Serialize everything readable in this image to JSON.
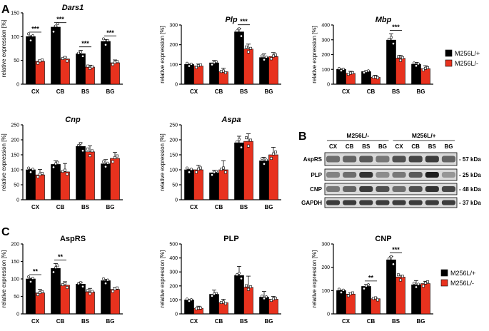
{
  "panels": {
    "A": "A",
    "B": "B",
    "C": "C"
  },
  "colors": {
    "wt": "#000000",
    "mut": "#e8321e"
  },
  "legend_A": [
    {
      "label": "M256L/+",
      "color": "#000000"
    },
    {
      "label": "M256L/-",
      "color": "#e8321e"
    }
  ],
  "legend_C": [
    {
      "label": "M256L/+",
      "color": "#000000"
    },
    {
      "label": "M256L/-",
      "color": "#e8321e"
    }
  ],
  "blot": {
    "groups": [
      "M256L/-",
      "M256L/+"
    ],
    "lanes": [
      "CX",
      "CB",
      "BS",
      "BG",
      "CX",
      "CB",
      "BS",
      "BG"
    ],
    "rows": [
      {
        "label": "AspRS",
        "size": "- 57 kDa",
        "intensity": [
          0.55,
          0.6,
          0.65,
          0.5,
          0.7,
          0.75,
          0.8,
          0.6
        ]
      },
      {
        "label": "PLP",
        "size": "- 25 kDa",
        "intensity": [
          0.45,
          0.55,
          0.85,
          0.4,
          0.5,
          0.65,
          0.95,
          0.35
        ]
      },
      {
        "label": "CNP",
        "size": "- 48 kDa",
        "intensity": [
          0.5,
          0.6,
          0.8,
          0.7,
          0.55,
          0.7,
          0.85,
          0.75
        ]
      },
      {
        "label": "GAPDH",
        "size": "- 37 kDa",
        "intensity": [
          0.8,
          0.8,
          0.8,
          0.8,
          0.8,
          0.8,
          0.8,
          0.8
        ]
      }
    ]
  },
  "chart_data": [
    {
      "id": "dars1",
      "type": "bar",
      "title": "Dars1",
      "italic": true,
      "ylabel": "relative expression [%]",
      "categories": [
        "CX",
        "CB",
        "BS",
        "BG"
      ],
      "ylim": [
        0,
        150
      ],
      "yticks": [
        0,
        50,
        100,
        150
      ],
      "series": [
        {
          "name": "M256L/+",
          "values": [
            100,
            120,
            64,
            90
          ],
          "err": [
            2,
            2,
            7,
            4
          ]
        },
        {
          "name": "M256L/-",
          "values": [
            48,
            53,
            36,
            45
          ],
          "err": [
            3,
            4,
            4,
            6
          ]
        }
      ],
      "significance": [
        "***",
        "***",
        "***",
        "***"
      ]
    },
    {
      "id": "plp_mrna",
      "type": "bar",
      "title": "Plp",
      "italic": true,
      "ylabel": "relative expression [%]",
      "categories": [
        "CX",
        "CB",
        "BS",
        "BG"
      ],
      "ylim": [
        0,
        300
      ],
      "yticks": [
        0,
        100,
        200,
        300
      ],
      "series": [
        {
          "name": "M256L/+",
          "values": [
            100,
            108,
            265,
            135
          ],
          "err": [
            2,
            12,
            18,
            18
          ]
        },
        {
          "name": "M256L/-",
          "values": [
            92,
            63,
            178,
            140
          ],
          "err": [
            10,
            18,
            25,
            20
          ]
        }
      ],
      "significance": [
        "",
        "",
        "***",
        ""
      ]
    },
    {
      "id": "mbp",
      "type": "bar",
      "title": "Mbp",
      "italic": true,
      "ylabel": "relative expression [%]",
      "categories": [
        "CX",
        "CB",
        "BS",
        "BG"
      ],
      "ylim": [
        0,
        400
      ],
      "yticks": [
        0,
        100,
        200,
        300,
        400
      ],
      "series": [
        {
          "name": "M256L/+",
          "values": [
            100,
            85,
            298,
            135
          ],
          "err": [
            3,
            6,
            42,
            12
          ]
        },
        {
          "name": "M256L/-",
          "values": [
            73,
            46,
            175,
            105
          ],
          "err": [
            14,
            14,
            20,
            20
          ]
        }
      ],
      "significance": [
        "",
        "",
        "***",
        ""
      ]
    },
    {
      "id": "cnp_mrna",
      "type": "bar",
      "title": "Cnp",
      "italic": true,
      "ylabel": "relative expression [%]",
      "categories": [
        "CX",
        "CB",
        "BS",
        "BG"
      ],
      "ylim": [
        0,
        250
      ],
      "yticks": [
        0,
        50,
        100,
        150,
        200,
        250
      ],
      "series": [
        {
          "name": "M256L/+",
          "values": [
            100,
            118,
            178,
            120
          ],
          "err": [
            2,
            12,
            12,
            14
          ]
        },
        {
          "name": "M256L/-",
          "values": [
            83,
            93,
            160,
            138
          ],
          "err": [
            18,
            28,
            20,
            20
          ]
        }
      ],
      "significance": [
        "",
        "",
        "",
        ""
      ]
    },
    {
      "id": "aspa",
      "type": "bar",
      "title": "Aspa",
      "italic": true,
      "ylabel": "relative expression [%]",
      "categories": [
        "CX",
        "CB",
        "BS",
        "BG"
      ],
      "ylim": [
        0,
        250
      ],
      "yticks": [
        0,
        50,
        100,
        150,
        200,
        250
      ],
      "series": [
        {
          "name": "M256L/+",
          "values": [
            100,
            90,
            190,
            130
          ],
          "err": [
            2,
            8,
            22,
            12
          ]
        },
        {
          "name": "M256L/-",
          "values": [
            100,
            100,
            195,
            150
          ],
          "err": [
            15,
            30,
            25,
            25
          ]
        }
      ],
      "significance": [
        "",
        "",
        "",
        ""
      ]
    },
    {
      "id": "asprs",
      "type": "bar",
      "title": "AspRS",
      "italic": false,
      "ylabel": "relative expression [%]",
      "categories": [
        "CX",
        "CB",
        "BS",
        "BG"
      ],
      "ylim": [
        0,
        200
      ],
      "yticks": [
        0,
        50,
        100,
        150,
        200
      ],
      "series": [
        {
          "name": "M256L/+",
          "values": [
            100,
            130,
            85,
            95
          ],
          "err": [
            2,
            14,
            6,
            4
          ]
        },
        {
          "name": "M256L/-",
          "values": [
            60,
            82,
            63,
            70
          ],
          "err": [
            10,
            10,
            10,
            5
          ]
        }
      ],
      "significance": [
        "**",
        "**",
        "",
        ""
      ]
    },
    {
      "id": "plp_prot",
      "type": "bar",
      "title": "PLP",
      "italic": false,
      "ylabel": "relative expression [%]",
      "categories": [
        "CX",
        "CB",
        "BS",
        "BG"
      ],
      "ylim": [
        0,
        500
      ],
      "yticks": [
        0,
        100,
        200,
        300,
        400,
        500
      ],
      "series": [
        {
          "name": "M256L/+",
          "values": [
            100,
            140,
            275,
            120
          ],
          "err": [
            3,
            30,
            65,
            40
          ]
        },
        {
          "name": "M256L/-",
          "values": [
            40,
            80,
            190,
            105
          ],
          "err": [
            15,
            25,
            80,
            20
          ]
        }
      ],
      "significance": [
        "",
        "",
        "",
        ""
      ]
    },
    {
      "id": "cnp_prot",
      "type": "bar",
      "title": "CNP",
      "italic": false,
      "ylabel": "relative expression [%]",
      "categories": [
        "CX",
        "CB",
        "BS",
        "BG"
      ],
      "ylim": [
        0,
        300
      ],
      "yticks": [
        0,
        100,
        200,
        300
      ],
      "series": [
        {
          "name": "M256L/+",
          "values": [
            100,
            118,
            232,
            125
          ],
          "err": [
            2,
            8,
            15,
            18
          ]
        },
        {
          "name": "M256L/-",
          "values": [
            85,
            65,
            158,
            130
          ],
          "err": [
            5,
            5,
            8,
            10
          ]
        }
      ],
      "significance": [
        "",
        "**",
        "***",
        ""
      ]
    }
  ]
}
